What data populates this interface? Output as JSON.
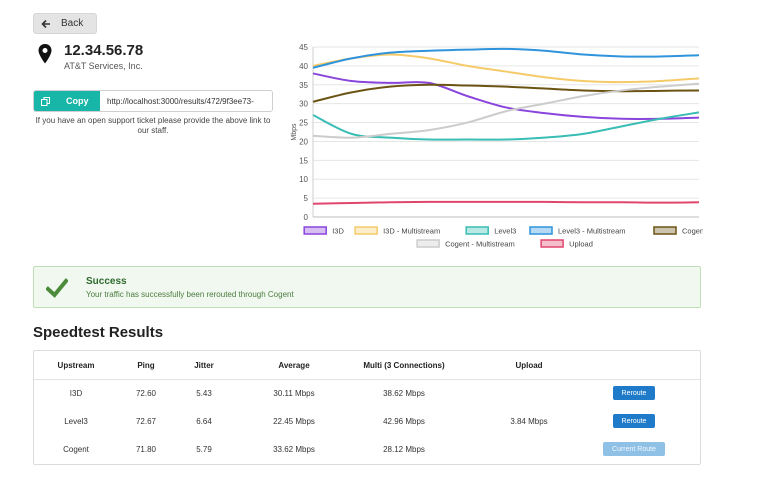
{
  "back_label": "Back",
  "location": {
    "ip": "12.34.56.78",
    "isp": "AT&T Services, Inc."
  },
  "copy": {
    "label": "Copy",
    "url": "http://localhost:3000/results/472/9f3ee73-",
    "note": "If you have an open support ticket please provide the above link to our staff."
  },
  "alert": {
    "title": "Success",
    "message": "Your traffic has successfully been rerouted through Cogent",
    "color": "#5a9a3f"
  },
  "results": {
    "title": "Speedtest Results",
    "headers": [
      "Upstream",
      "Ping",
      "Jitter",
      "Average",
      "Multi (3 Connections)",
      "Upload"
    ],
    "rows": [
      {
        "upstream": "I3D",
        "ping": "72.60",
        "jitter": "5.43",
        "average": "30.11 Mbps",
        "multi": "38.62 Mbps",
        "upload": "",
        "action": "Reroute"
      },
      {
        "upstream": "Level3",
        "ping": "72.67",
        "jitter": "6.64",
        "average": "22.45 Mbps",
        "multi": "42.96 Mbps",
        "upload": "3.84 Mbps",
        "action": "Reroute"
      },
      {
        "upstream": "Cogent",
        "ping": "71.80",
        "jitter": "5.79",
        "average": "33.62 Mbps",
        "multi": "28.12 Mbps",
        "upload": "",
        "action": "Current Route"
      }
    ]
  },
  "chart_data": {
    "type": "line",
    "title": "",
    "xlabel": "",
    "ylabel": "Mbps",
    "ylim": [
      0,
      45
    ],
    "yticks": [
      0,
      5,
      10,
      15,
      20,
      25,
      30,
      35,
      40,
      45
    ],
    "grid": true,
    "legend_position": "bottom",
    "x": [
      0,
      1,
      2,
      3,
      4,
      5,
      6,
      7,
      8,
      9,
      10
    ],
    "series": [
      {
        "name": "I3D",
        "color": "#8a45dc",
        "values": [
          38,
          36,
          35.5,
          35.5,
          32,
          29,
          27.5,
          26.5,
          26,
          26,
          26.3
        ]
      },
      {
        "name": "I3D - Multistream",
        "color": "#f5cb6a",
        "values": [
          40,
          42,
          43,
          42,
          40,
          38.5,
          37,
          36,
          35.7,
          36,
          36.7
        ]
      },
      {
        "name": "Level3",
        "color": "#39bdb4",
        "values": [
          27,
          22,
          21,
          20.5,
          20.5,
          20.5,
          21,
          22,
          24,
          26,
          27.7
        ]
      },
      {
        "name": "Level3 - Multistream",
        "color": "#2f94dc",
        "values": [
          39.5,
          42,
          43.5,
          44,
          44.3,
          44.5,
          44,
          43,
          42.5,
          42.5,
          42.8
        ]
      },
      {
        "name": "Cogent",
        "color": "#6b5413",
        "values": [
          30.5,
          33,
          34.5,
          35,
          34.8,
          34.5,
          34,
          33.5,
          33.3,
          33.4,
          33.5
        ]
      },
      {
        "name": "Cogent - Multistream",
        "color": "#cccccc",
        "values": [
          21.5,
          21,
          22,
          23,
          25,
          28,
          30,
          32,
          33.5,
          34.5,
          35.3
        ]
      },
      {
        "name": "Upload",
        "color": "#e0466d",
        "values": [
          3.5,
          3.7,
          3.9,
          4,
          4,
          4,
          4,
          3.9,
          3.9,
          3.8,
          3.9
        ]
      }
    ]
  }
}
